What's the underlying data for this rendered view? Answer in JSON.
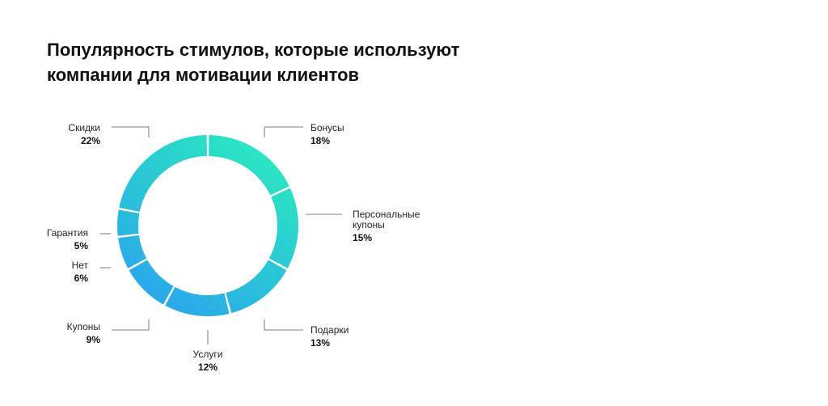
{
  "title_lines": [
    "Популярность стимулов, которые используют",
    "компании для мотивации клиентов"
  ],
  "chart_data": {
    "type": "pie",
    "variant": "donut",
    "title": "Популярность стимулов, которые используют компании для мотивации клиентов",
    "categories": [
      "Бонусы",
      "Персональные купоны",
      "Подарки",
      "Услуги",
      "Купоны",
      "Нет",
      "Гарантия",
      "Скидки"
    ],
    "values": [
      18,
      15,
      13,
      12,
      9,
      6,
      5,
      22
    ],
    "value_labels": [
      "18%",
      "15%",
      "13%",
      "12%",
      "9%",
      "6%",
      "5%",
      "22%"
    ],
    "label_lines": [
      [
        "Бонусы"
      ],
      [
        "Персональные",
        "купоны"
      ],
      [
        "Подарки"
      ],
      [
        "Услуги"
      ],
      [
        "Купоны"
      ],
      [
        "Нет"
      ],
      [
        "Гарантия"
      ],
      [
        "Скидки"
      ]
    ],
    "gradient_colors": [
      "#2ae8c0",
      "#2aa3ee"
    ]
  }
}
